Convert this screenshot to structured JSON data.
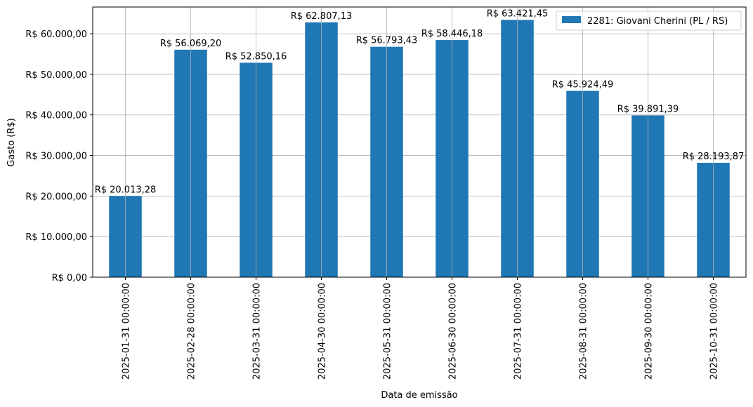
{
  "chart_data": {
    "type": "bar",
    "title": "",
    "xlabel": "Data de emissão",
    "ylabel": "Gasto (R$)",
    "ylim": [
      0,
      66592
    ],
    "grid": true,
    "legend_placement": "upper right",
    "bar_color": "#1f77b4",
    "categories": [
      "2025-01-31 00:00:00",
      "2025-02-28 00:00:00",
      "2025-03-31 00:00:00",
      "2025-04-30 00:00:00",
      "2025-05-31 00:00:00",
      "2025-06-30 00:00:00",
      "2025-07-31 00:00:00",
      "2025-08-31 00:00:00",
      "2025-09-30 00:00:00",
      "2025-10-31 00:00:00"
    ],
    "series": [
      {
        "name": "2281: Giovani Cherini (PL / RS)",
        "values": [
          20013.28,
          56069.2,
          52850.16,
          62807.13,
          56793.43,
          58446.18,
          63421.45,
          45924.49,
          39891.39,
          28193.87
        ]
      }
    ],
    "data_labels": [
      "R$ 20.013,28",
      "R$ 56.069,20",
      "R$ 52.850,16",
      "R$ 62.807,13",
      "R$ 56.793,43",
      "R$ 58.446,18",
      "R$ 63.421,45",
      "R$ 45.924,49",
      "R$ 39.891,39",
      "R$ 28.193,87"
    ],
    "yticks": [
      0,
      10000,
      20000,
      30000,
      40000,
      50000,
      60000
    ],
    "ytick_labels": [
      "R$ 0,00",
      "R$ 10.000,00",
      "R$ 20.000,00",
      "R$ 30.000,00",
      "R$ 40.000,00",
      "R$ 50.000,00",
      "R$ 60.000,00"
    ]
  }
}
